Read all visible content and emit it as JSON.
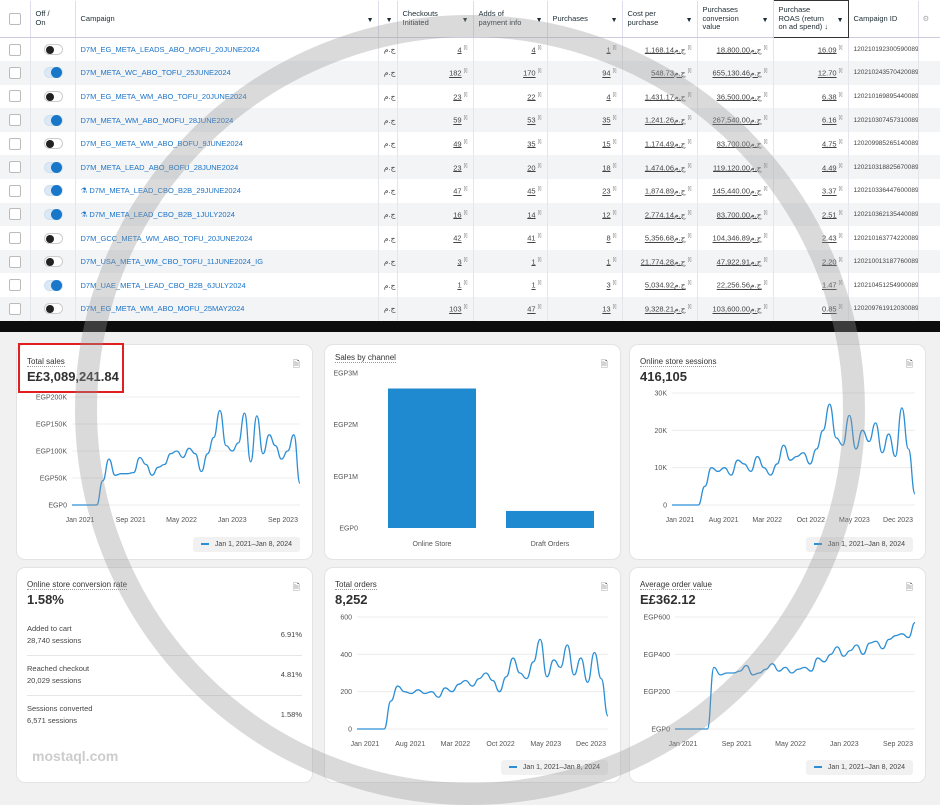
{
  "table": {
    "headers": {
      "off_on": "Off / On",
      "campaign": "Campaign",
      "hidden": "",
      "checkouts": "Checkouts Initiated",
      "adds_payment": "Adds of payment info",
      "purchases": "Purchases",
      "cost_per_purchase": "Cost per purchase",
      "conversion_value": "Purchases conversion value",
      "roas": "Purchase ROAS (return on ad spend) ↓",
      "campaign_id": "Campaign ID"
    },
    "currency": "ج.م",
    "rows": [
      {
        "on": false,
        "test": false,
        "name": "D7M_EG_META_LEADS_ABO_MOFU_20JUNE2024",
        "checkouts": "4",
        "adds": "4",
        "purchases": "1",
        "cpp": "1,168.14",
        "value": "18,800.00",
        "roas": "16.09",
        "id": "120210192300590089"
      },
      {
        "on": true,
        "test": false,
        "name": "D7M_META_WC_ABO_TOFU_25JUNE2024",
        "checkouts": "182",
        "adds": "170",
        "purchases": "94",
        "cpp": "548.73",
        "value": "655,130.46",
        "roas": "12.70",
        "id": "120210243570420089"
      },
      {
        "on": false,
        "test": false,
        "name": "D7M_EG_META_WM_ABO_TOFU_20JUNE2024",
        "checkouts": "23",
        "adds": "22",
        "purchases": "4",
        "cpp": "1,431.17",
        "value": "36,500.00",
        "roas": "6.38",
        "id": "120210169895440089"
      },
      {
        "on": true,
        "test": false,
        "name": "D7M_META_WM_ABO_MOFU_28JUNE2024",
        "checkouts": "59",
        "adds": "53",
        "purchases": "35",
        "cpp": "1,241.26",
        "value": "267,540.00",
        "roas": "6.16",
        "id": "120210307457310089"
      },
      {
        "on": false,
        "test": false,
        "name": "D7M_EG_META_WM_ABO_BOFU_9JUNE2024",
        "checkouts": "49",
        "adds": "35",
        "purchases": "15",
        "cpp": "1,174.49",
        "value": "83,700.00",
        "roas": "4.75",
        "id": "120209985265140089"
      },
      {
        "on": true,
        "test": false,
        "name": "D7M_META_LEAD_ABO_BOFU_28JUNE2024",
        "checkouts": "23",
        "adds": "20",
        "purchases": "18",
        "cpp": "1,474.06",
        "value": "119,120.00",
        "roas": "4.49",
        "id": "120210318825670089"
      },
      {
        "on": true,
        "test": true,
        "name": "D7M_META_LEAD_CBO_B2B_29JUNE2024",
        "checkouts": "47",
        "adds": "45",
        "purchases": "23",
        "cpp": "1,874.89",
        "value": "145,440.00",
        "roas": "3.37",
        "id": "120210336447600089"
      },
      {
        "on": true,
        "test": true,
        "name": "D7M_META_LEAD_CBO_B2B_1JULY2024",
        "checkouts": "16",
        "adds": "14",
        "purchases": "12",
        "cpp": "2,774.14",
        "value": "83,700.00",
        "roas": "2.51",
        "id": "120210362135440089"
      },
      {
        "on": false,
        "test": false,
        "name": "D7M_GCC_META_WM_ABO_TOFU_20JUNE2024",
        "checkouts": "42",
        "adds": "41",
        "purchases": "8",
        "cpp": "5,356.68",
        "value": "104,346.89",
        "roas": "2.43",
        "id": "120210163774220089"
      },
      {
        "on": false,
        "test": false,
        "name": "D7M_USA_META_WM_CBO_TOFU_11JUNE2024_IG",
        "checkouts": "3",
        "adds": "1",
        "purchases": "1",
        "cpp": "21,774.28",
        "value": "47,922.91",
        "roas": "2.20",
        "id": "120210013187760089"
      },
      {
        "on": true,
        "test": false,
        "name": "D7M_UAE_META_LEAD_CBO_B2B_6JULY2024",
        "checkouts": "1",
        "adds": "1",
        "purchases": "3",
        "cpp": "5,034.92",
        "value": "22,256.56",
        "roas": "1.47",
        "id": "120210451254900089"
      },
      {
        "on": false,
        "test": false,
        "name": "D7M_EG_META_WM_ABO_MOFU_25MAY2024",
        "checkouts": "103",
        "adds": "47",
        "purchases": "13",
        "cpp": "9,328.21",
        "value": "103,600.00",
        "roas": "0.85",
        "id": "120209761912030089"
      }
    ]
  },
  "dashboard": {
    "legend": "Jan 1, 2021–Jan 8, 2024",
    "total_sales": {
      "title": "Total sales",
      "value": "E£3,089,241.84",
      "yticks": [
        "EGP200K",
        "EGP150K",
        "EGP100K",
        "EGP50K",
        "EGP0"
      ],
      "xticks": [
        "Jan 2021",
        "Sep 2021",
        "May 2022",
        "Jan 2023",
        "Sep 2023"
      ],
      "ymax": 200000,
      "values": [
        0,
        0,
        0,
        0,
        0,
        45000,
        85000,
        55000,
        58000,
        58000,
        60000,
        88000,
        75000,
        55000,
        70000,
        75000,
        95000,
        100000,
        88000,
        105000,
        95000,
        62000,
        95000,
        125000,
        175000,
        110000,
        100000,
        115000,
        170000,
        80000,
        165000,
        95000,
        130000,
        110000,
        85000,
        100000,
        130000,
        40000
      ]
    },
    "sales_by_channel": {
      "title": "Sales by channel",
      "yticks": [
        "EGP3M",
        "EGP2M",
        "EGP1M",
        "EGP0"
      ],
      "ymax": 3000000,
      "categories": [
        "Online Store",
        "Draft Orders"
      ],
      "values": [
        2700000,
        330000
      ]
    },
    "sessions": {
      "title": "Online store sessions",
      "value": "416,105",
      "yticks": [
        "30K",
        "20K",
        "10K",
        "0"
      ],
      "xticks": [
        "Jan 2021",
        "Aug 2021",
        "Mar 2022",
        "Oct 2022",
        "May 2023",
        "Dec 2023"
      ],
      "ymax": 30000,
      "values": [
        0,
        0,
        0,
        0,
        0,
        5000,
        10000,
        9000,
        10000,
        8000,
        12000,
        11000,
        9000,
        13000,
        10000,
        8000,
        11000,
        16000,
        12000,
        13000,
        14000,
        11000,
        15000,
        20000,
        27000,
        18000,
        16000,
        24000,
        15000,
        20000,
        17000,
        22000,
        14000,
        19000,
        13000,
        26000,
        15000,
        3000
      ]
    },
    "conversion": {
      "title": "Online store conversion rate",
      "value": "1.58%",
      "steps": [
        {
          "label": "Added to cart",
          "sessions": "28,740 sessions",
          "percent": "6.91%"
        },
        {
          "label": "Reached checkout",
          "sessions": "20,029 sessions",
          "percent": "4.81%"
        },
        {
          "label": "Sessions converted",
          "sessions": "6,571 sessions",
          "percent": "1.58%"
        }
      ]
    },
    "orders": {
      "title": "Total orders",
      "value": "8,252",
      "yticks": [
        "600",
        "400",
        "200",
        "0"
      ],
      "xticks": [
        "Jan 2021",
        "Aug 2021",
        "Mar 2022",
        "Oct 2022",
        "May 2023",
        "Dec 2023"
      ],
      "ymax": 600,
      "values": [
        0,
        0,
        0,
        0,
        0,
        150,
        230,
        200,
        190,
        210,
        190,
        200,
        170,
        220,
        200,
        240,
        260,
        230,
        270,
        300,
        260,
        200,
        280,
        380,
        300,
        270,
        360,
        480,
        280,
        370,
        330,
        450,
        290,
        380,
        250,
        410,
        270,
        70
      ]
    },
    "aov": {
      "title": "Average order value",
      "value": "E£362.12",
      "yticks": [
        "EGP600",
        "EGP400",
        "EGP200",
        "EGP0"
      ],
      "xticks": [
        "Jan 2021",
        "Sep 2021",
        "May 2022",
        "Jan 2023",
        "Sep 2023"
      ],
      "ymax": 600,
      "values": [
        0,
        0,
        0,
        0,
        0,
        0,
        330,
        290,
        300,
        300,
        310,
        340,
        290,
        300,
        320,
        350,
        310,
        330,
        300,
        320,
        330,
        310,
        380,
        360,
        400,
        440,
        390,
        420,
        450,
        400,
        460,
        470,
        430,
        480,
        500,
        510,
        490,
        570
      ]
    },
    "line_color": "#2c8fd6",
    "bar_color": "#1f8ad0"
  },
  "watermark": {
    "text": "mostaql.com"
  }
}
